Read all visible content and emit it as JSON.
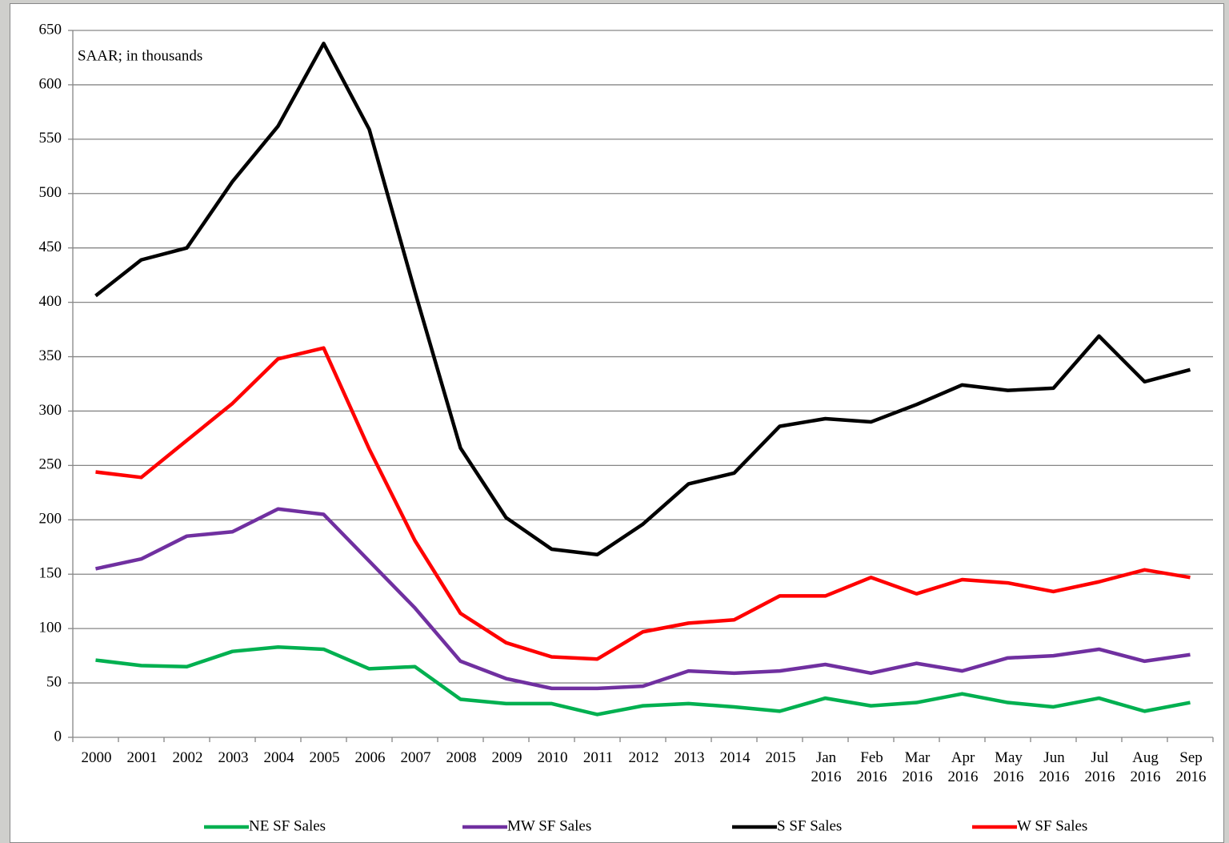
{
  "chart_data": {
    "type": "line",
    "annotation": "SAAR; in thousands",
    "categories": [
      "2000",
      "2001",
      "2002",
      "2003",
      "2004",
      "2005",
      "2006",
      "2007",
      "2008",
      "2009",
      "2010",
      "2011",
      "2012",
      "2013",
      "2014",
      "2015",
      "Jan 2016",
      "Feb 2016",
      "Mar 2016",
      "Apr 2016",
      "May 2016",
      "Jun 2016",
      "Jul 2016",
      "Aug 2016",
      "Sep 2016"
    ],
    "series": [
      {
        "name": "NE SF Sales",
        "color": "#00b050",
        "values": [
          71,
          66,
          65,
          79,
          83,
          81,
          63,
          65,
          35,
          31,
          31,
          21,
          29,
          31,
          28,
          24,
          36,
          29,
          32,
          40,
          32,
          28,
          36,
          24,
          32
        ]
      },
      {
        "name": "MW SF Sales",
        "color": "#7030a0",
        "values": [
          155,
          164,
          185,
          189,
          210,
          205,
          162,
          119,
          70,
          54,
          45,
          45,
          47,
          61,
          59,
          61,
          67,
          59,
          68,
          61,
          73,
          75,
          81,
          70,
          76
        ]
      },
      {
        "name": "S SF Sales",
        "color": "#000000",
        "values": [
          406,
          439,
          450,
          511,
          562,
          638,
          559,
          410,
          266,
          202,
          173,
          168,
          196,
          233,
          243,
          286,
          293,
          290,
          306,
          324,
          319,
          321,
          369,
          327,
          338
        ]
      },
      {
        "name": "W SF Sales",
        "color": "#ff0000",
        "values": [
          244,
          239,
          273,
          307,
          348,
          358,
          265,
          181,
          114,
          87,
          74,
          72,
          97,
          105,
          108,
          130,
          130,
          147,
          132,
          145,
          142,
          134,
          143,
          154,
          147
        ]
      }
    ],
    "ylim": [
      0,
      650
    ],
    "yticks": [
      0,
      50,
      100,
      150,
      200,
      250,
      300,
      350,
      400,
      450,
      500,
      550,
      600,
      650
    ],
    "grid": true,
    "legend": "bottom"
  }
}
